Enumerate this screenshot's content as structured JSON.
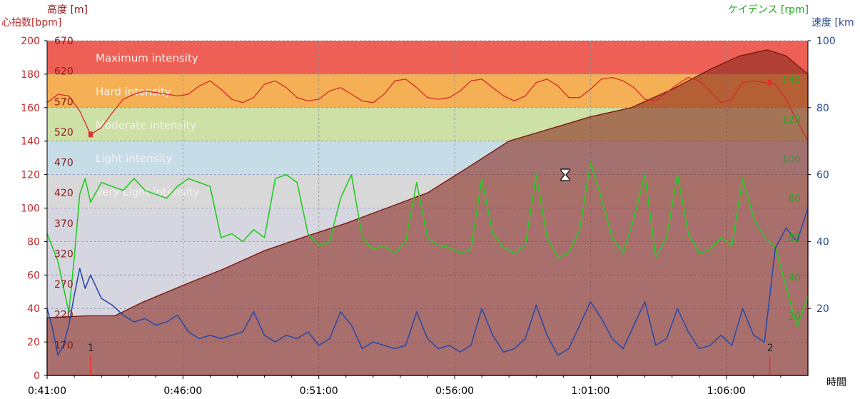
{
  "chart_data": {
    "type": "line",
    "xlabel": "時間",
    "x_ticks": [
      "0:41:00",
      "0:46:00",
      "0:51:00",
      "0:56:00",
      "1:01:00",
      "1:06:00"
    ],
    "axes": {
      "heart_rate": {
        "label": "心拍数[bpm]",
        "color": "#c0282a",
        "range": [
          0,
          200
        ],
        "ticks": [
          0,
          20,
          40,
          60,
          80,
          100,
          120,
          140,
          160,
          180,
          200
        ]
      },
      "altitude": {
        "label": "高度 [m]",
        "color": "#8b1a1a",
        "range": [
          120,
          670
        ],
        "ticks": [
          170,
          220,
          270,
          320,
          370,
          420,
          470,
          520,
          570,
          620,
          670
        ]
      },
      "cadence": {
        "label": "ケイデンス [rpm]",
        "color": "#22aa22",
        "ticks": [
          20,
          40,
          60,
          80,
          100,
          120,
          140
        ]
      },
      "speed": {
        "label": "速度 [km",
        "color": "#2b4a8c",
        "range": [
          0,
          100
        ],
        "ticks": [
          20,
          40,
          60,
          80,
          100
        ]
      }
    },
    "zones": [
      {
        "name": "Maximum intensity",
        "from": 180,
        "to": 200,
        "color": "#ee6055"
      },
      {
        "name": "Hard intensity",
        "from": 160,
        "to": 180,
        "color": "#f5b055"
      },
      {
        "name": "Moderate intensity",
        "from": 140,
        "to": 160,
        "color": "#cde0a5"
      },
      {
        "name": "Light intensity",
        "from": 120,
        "to": 140,
        "color": "#c6dde8"
      },
      {
        "name": "Very Light intensity",
        "from": 100,
        "to": 120,
        "color": "#d8d8d8"
      }
    ],
    "markers": [
      {
        "label": "1",
        "x_min": 1.6
      },
      {
        "label": "2",
        "x_min": 26.6
      }
    ],
    "heart_rate_series": {
      "name": "心拍数",
      "x_min": [
        0,
        0.4,
        0.8,
        1.2,
        1.6,
        2.0,
        2.4,
        2.8,
        3.2,
        3.6,
        4.0,
        4.4,
        4.8,
        5.2,
        5.6,
        6.0,
        6.4,
        6.8,
        7.2,
        7.6,
        8.0,
        8.4,
        8.8,
        9.2,
        9.6,
        10.0,
        10.4,
        10.8,
        11.2,
        11.6,
        12.0,
        12.4,
        12.8,
        13.2,
        13.6,
        14.0,
        14.4,
        14.8,
        15.2,
        15.6,
        16.0,
        16.4,
        16.8,
        17.2,
        17.6,
        18.0,
        18.4,
        18.8,
        19.2,
        19.6,
        20.0,
        20.4,
        20.8,
        21.2,
        21.6,
        22.0,
        22.4,
        22.8,
        23.2,
        23.6,
        24.0,
        24.4,
        24.8,
        25.2,
        25.6,
        26.0,
        26.4,
        26.8,
        27.2,
        27.6,
        28.0
      ],
      "values": [
        163,
        168,
        167,
        158,
        144,
        148,
        157,
        165,
        168,
        170,
        169,
        168,
        167,
        168,
        173,
        176,
        171,
        165,
        163,
        166,
        174,
        176,
        172,
        166,
        164,
        165,
        170,
        172,
        168,
        164,
        163,
        168,
        176,
        177,
        172,
        166,
        165,
        166,
        170,
        176,
        177,
        172,
        167,
        164,
        167,
        175,
        177,
        173,
        166,
        166,
        171,
        177,
        178,
        176,
        172,
        165,
        164,
        169,
        174,
        178,
        176,
        170,
        163,
        165,
        175,
        176,
        175,
        174,
        165,
        152,
        140
      ]
    },
    "altitude_series": {
      "name": "高度",
      "x_min": [
        0,
        1.5,
        2.5,
        3.5,
        5.0,
        6.5,
        8.0,
        9.5,
        11.0,
        12.5,
        14.0,
        15.5,
        17.0,
        18.5,
        20.0,
        21.5,
        23.0,
        24.5,
        25.5,
        26.5,
        27.2,
        28.0
      ],
      "values": [
        215,
        218,
        218,
        240,
        268,
        295,
        325,
        348,
        370,
        395,
        420,
        462,
        505,
        525,
        545,
        560,
        590,
        625,
        645,
        655,
        645,
        615
      ]
    },
    "cadence_series": {
      "name": "ケイデンス",
      "x_min": [
        0,
        0.2,
        0.4,
        0.6,
        0.8,
        1.0,
        1.2,
        1.4,
        1.6,
        2.0,
        2.4,
        2.8,
        3.2,
        3.6,
        4.0,
        4.4,
        4.8,
        5.2,
        5.6,
        6.0,
        6.4,
        6.8,
        7.2,
        7.6,
        8.0,
        8.4,
        8.8,
        9.2,
        9.6,
        10.0,
        10.4,
        10.8,
        11.2,
        11.6,
        12.0,
        12.4,
        12.8,
        13.2,
        13.6,
        14.0,
        14.4,
        14.8,
        15.2,
        15.6,
        16.0,
        16.4,
        16.8,
        17.2,
        17.6,
        18.0,
        18.4,
        18.8,
        19.2,
        19.6,
        20.0,
        20.4,
        20.8,
        21.2,
        21.6,
        22.0,
        22.4,
        22.8,
        23.2,
        23.6,
        24.0,
        24.4,
        24.8,
        25.2,
        25.6,
        26.0,
        26.4,
        26.8,
        27.2,
        27.6,
        28.0
      ],
      "values": [
        62,
        55,
        48,
        35,
        22,
        50,
        82,
        90,
        78,
        88,
        86,
        84,
        90,
        84,
        82,
        80,
        86,
        90,
        88,
        86,
        60,
        62,
        58,
        64,
        60,
        90,
        92,
        88,
        62,
        56,
        58,
        80,
        92,
        60,
        54,
        56,
        52,
        58,
        88,
        60,
        56,
        55,
        52,
        54,
        90,
        62,
        55,
        52,
        56,
        92,
        60,
        50,
        52,
        64,
        98,
        80,
        60,
        52,
        70,
        92,
        50,
        60,
        92,
        62,
        52,
        54,
        60,
        56,
        90,
        70,
        60,
        55,
        35,
        15,
        30
      ]
    },
    "speed_series": {
      "name": "速度",
      "x_min": [
        0,
        0.2,
        0.4,
        0.6,
        0.8,
        1.0,
        1.2,
        1.4,
        1.6,
        2.0,
        2.4,
        2.8,
        3.2,
        3.6,
        4.0,
        4.4,
        4.8,
        5.2,
        5.6,
        6.0,
        6.4,
        6.8,
        7.2,
        7.6,
        8.0,
        8.4,
        8.8,
        9.2,
        9.6,
        10.0,
        10.4,
        10.8,
        11.2,
        11.6,
        12.0,
        12.4,
        12.8,
        13.2,
        13.6,
        14.0,
        14.4,
        14.8,
        15.2,
        15.6,
        16.0,
        16.4,
        16.8,
        17.2,
        17.6,
        18.0,
        18.4,
        18.8,
        19.2,
        19.6,
        20.0,
        20.4,
        20.8,
        21.2,
        21.6,
        22.0,
        22.4,
        22.8,
        23.2,
        23.6,
        24.0,
        24.4,
        24.8,
        25.2,
        25.6,
        26.0,
        26.4,
        26.8,
        27.2,
        27.6,
        28.0
      ],
      "values": [
        20,
        14,
        6,
        9,
        15,
        24,
        32,
        26,
        30,
        23,
        21,
        18,
        16,
        17,
        15,
        16,
        18,
        13,
        11,
        12,
        11,
        12,
        13,
        19,
        12,
        10,
        12,
        11,
        13,
        9,
        11,
        19,
        15,
        8,
        10,
        9,
        8,
        9,
        19,
        11,
        8,
        9,
        7,
        9,
        20,
        12,
        7,
        8,
        11,
        21,
        12,
        6,
        8,
        15,
        22,
        17,
        11,
        8,
        15,
        22,
        9,
        11,
        20,
        13,
        8,
        9,
        12,
        9,
        20,
        12,
        10,
        38,
        44,
        40,
        50
      ]
    }
  }
}
